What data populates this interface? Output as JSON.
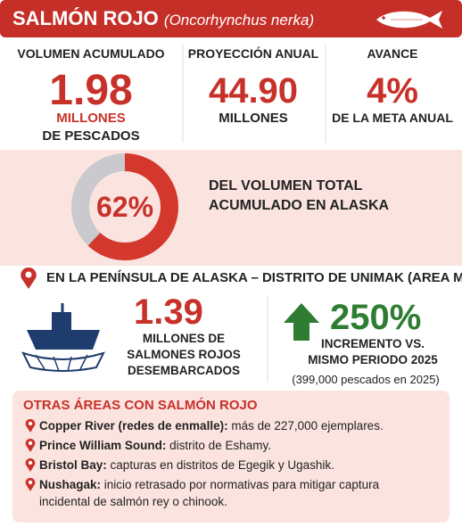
{
  "header": {
    "title": "SALMÓN ROJO",
    "subtitle": "(Oncorhynchus nerka)"
  },
  "stats": [
    {
      "label": "VOLUMEN ACUMULADO",
      "value": "1.98",
      "unit": "MILLONES",
      "detail": "DE PESCADOS"
    },
    {
      "label": "PROYECCIÓN ANUAL",
      "value": "44.90",
      "unit": "MILLONES"
    },
    {
      "label": "AVANCE",
      "value": "4%",
      "unit": "DE LA META ANUAL"
    }
  ],
  "share": {
    "value": 62,
    "label": "62%",
    "lines": [
      "DEL VOLUMEN TOTAL",
      "ACUMULADO EN ALASKA"
    ]
  },
  "region": {
    "title": "EN LA PENÍNSULA DE ALASKA – DISTRITO DE UNIMAK (AREA M)",
    "landed": {
      "value": "1.39",
      "lines": [
        "MILLONES DE",
        "SALMONES ROJOS",
        "DESEMBARCADOS"
      ]
    },
    "growth": {
      "value": "250%",
      "lines": [
        "INCREMENTO VS.",
        "MISMO PERIODO 2025"
      ],
      "note": "(399,000 pescados en 2025)"
    }
  },
  "other_areas": {
    "title": "OTRAS ÁREAS CON SALMÓN ROJO",
    "items": [
      {
        "name": "Copper River (redes de enmalle):",
        "text": "más de 227,000 ejemplares."
      },
      {
        "name": "Prince William Sound:",
        "text": "distrito de Eshamy."
      },
      {
        "name": "Bristol Bay:",
        "text": "capturas en distritos de Egegik y Ugashik."
      },
      {
        "name": "Nushagak:",
        "text": "inicio retrasado por normativas para mitigar captura incidental de salmón rey o chinook."
      }
    ]
  }
}
